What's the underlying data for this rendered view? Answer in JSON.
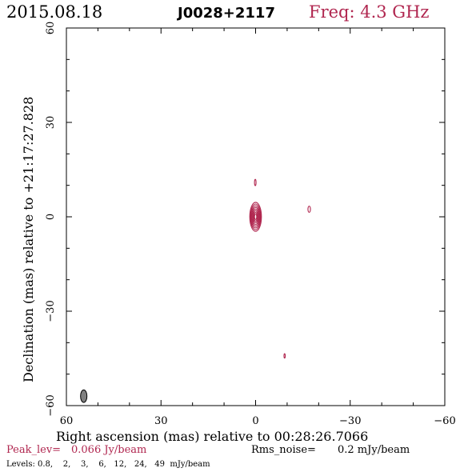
{
  "header": {
    "date": "2015.08.18",
    "source": "J0028+2117",
    "freq": "Freq: 4.3 GHz"
  },
  "colors": {
    "accent": "#b0264f",
    "ink": "#000000",
    "beam_fill": "#808080"
  },
  "chart_data": {
    "type": "contour",
    "xlabel": "Right ascension (mas) relative to 00:28:26.7066",
    "ylabel": "Declination (mas) relative to +21:17:27.828",
    "xlim": [
      60,
      -60
    ],
    "ylim": [
      -60,
      60
    ],
    "x_ticks": [
      60,
      30,
      0,
      -30,
      -60
    ],
    "x_tick_labels": [
      "60",
      "30",
      "0",
      "−30",
      "−60"
    ],
    "y_ticks": [
      60,
      30,
      0,
      -30,
      -60
    ],
    "y_tick_labels": [
      "60",
      "30",
      "0",
      "−30",
      "−60"
    ],
    "components": [
      {
        "ra": 0.0,
        "dec": 0.0,
        "semi_major": 4.6,
        "semi_minor": 1.85,
        "contours": 8
      },
      {
        "ra": 0.1,
        "dec": 10.9,
        "semi_major": 1.0,
        "semi_minor": 0.25,
        "contours": 1
      },
      {
        "ra": -17.0,
        "dec": 2.4,
        "semi_major": 1.0,
        "semi_minor": 0.4,
        "contours": 1
      },
      {
        "ra": -9.2,
        "dec": -44.2,
        "semi_major": 0.7,
        "semi_minor": 0.2,
        "contours": 1
      }
    ],
    "beam": {
      "ra": 54.5,
      "dec": -57.0,
      "semi_major": 2.0,
      "semi_minor": 0.85
    },
    "peak_label": "Peak_lev=",
    "peak_value": "0.066 Jy/beam",
    "rms_label": "Rms_noise=",
    "rms_value": "0.2 mJy/beam",
    "levels_text": "Levels: 0.8,    2,    3,    6,   12,   24,   49  mJy/beam"
  }
}
